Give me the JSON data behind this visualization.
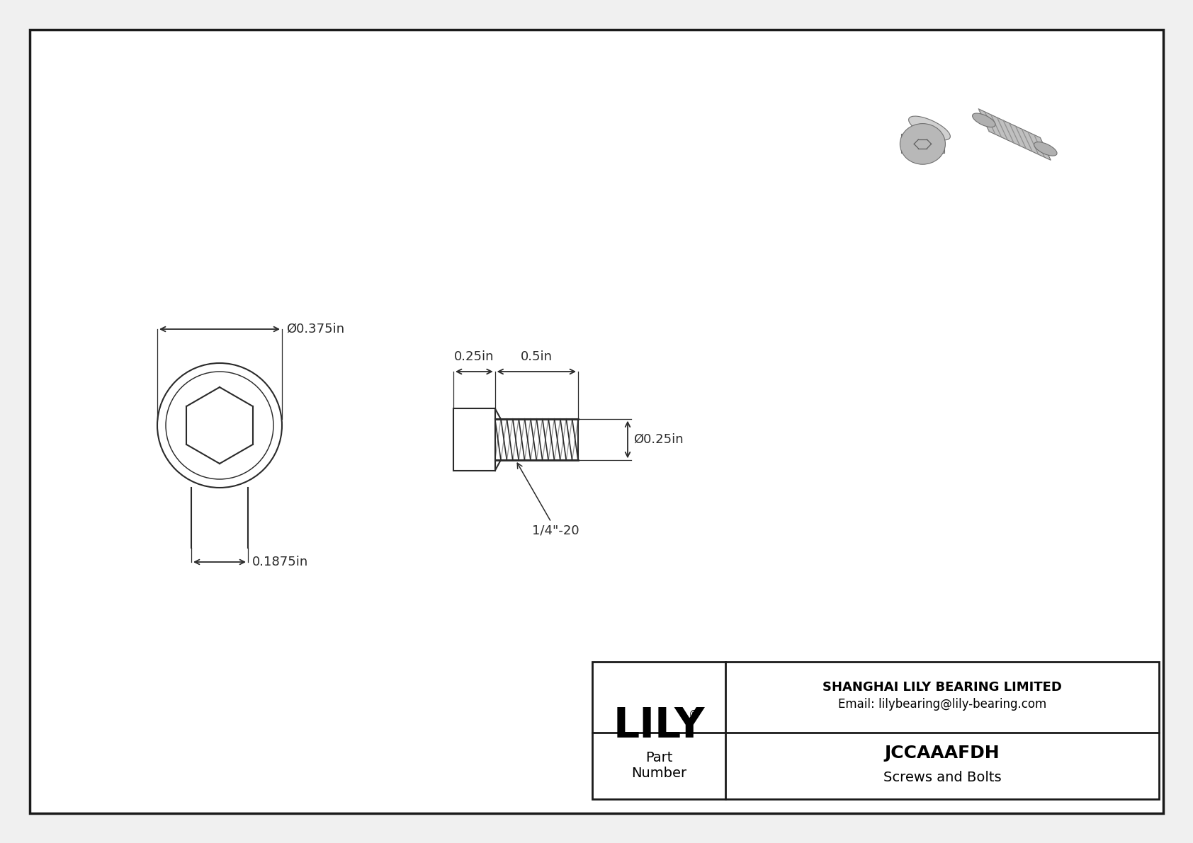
{
  "bg_color": "#f0f0f0",
  "drawing_bg": "#ffffff",
  "border_color": "#2a2a2a",
  "line_color": "#2a2a2a",
  "title": "JCCAAAFDH",
  "subtitle": "Screws and Bolts",
  "company": "SHANGHAI LILY BEARING LIMITED",
  "email": "Email: lilybearing@lily-bearing.com",
  "part_label": "Part\nNumber",
  "dim_head_diameter": "Ø0.375in",
  "dim_head_height": "0.1875in",
  "dim_thread_length": "0.5in",
  "dim_body_length": "0.25in",
  "dim_shank_diameter": "Ø0.25in",
  "thread_label": "1/4\"-20",
  "font_size_dim": 13,
  "font_size_title": 18,
  "font_size_company": 13,
  "font_size_logo": 42
}
